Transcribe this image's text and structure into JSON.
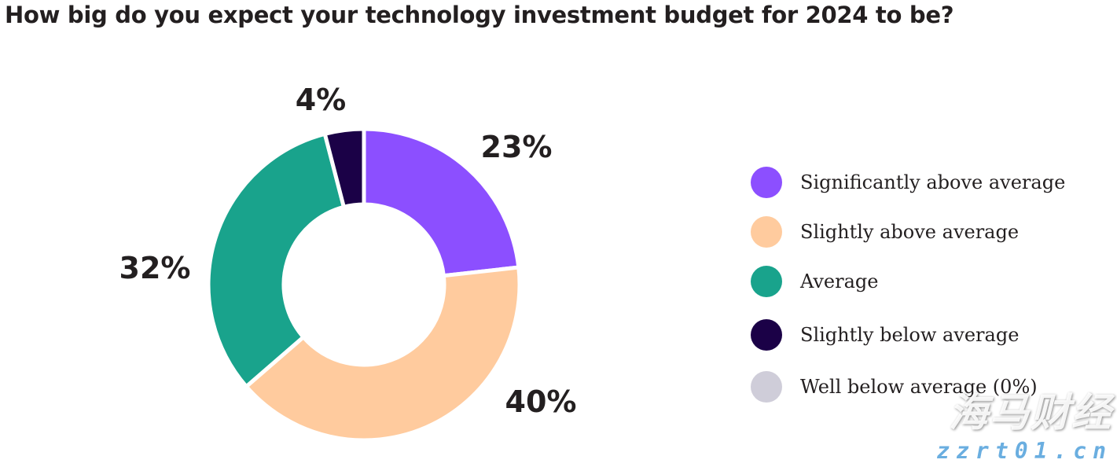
{
  "chart_data": {
    "type": "pie",
    "title": "How big do you expect your technology investment budget for 2024 to be?",
    "donut": true,
    "legend_placement": "right",
    "slices": [
      {
        "label": "Significantly above average",
        "value": 23,
        "data_label": "23%",
        "color": "#8c4fff"
      },
      {
        "label": "Slightly above average",
        "value": 40,
        "data_label": "40%",
        "color": "#ffcb9e"
      },
      {
        "label": "Average",
        "value": 32,
        "data_label": "32%",
        "color": "#19a38c"
      },
      {
        "label": "Slightly below average",
        "value": 4,
        "data_label": "4%",
        "color": "#1b0147"
      },
      {
        "label": "Well below average (0%)",
        "value": 0,
        "data_label": "",
        "color": "#cfcdd9"
      }
    ]
  },
  "watermark": {
    "text_cn": "海马财经",
    "url": "zzrt01.cn"
  }
}
